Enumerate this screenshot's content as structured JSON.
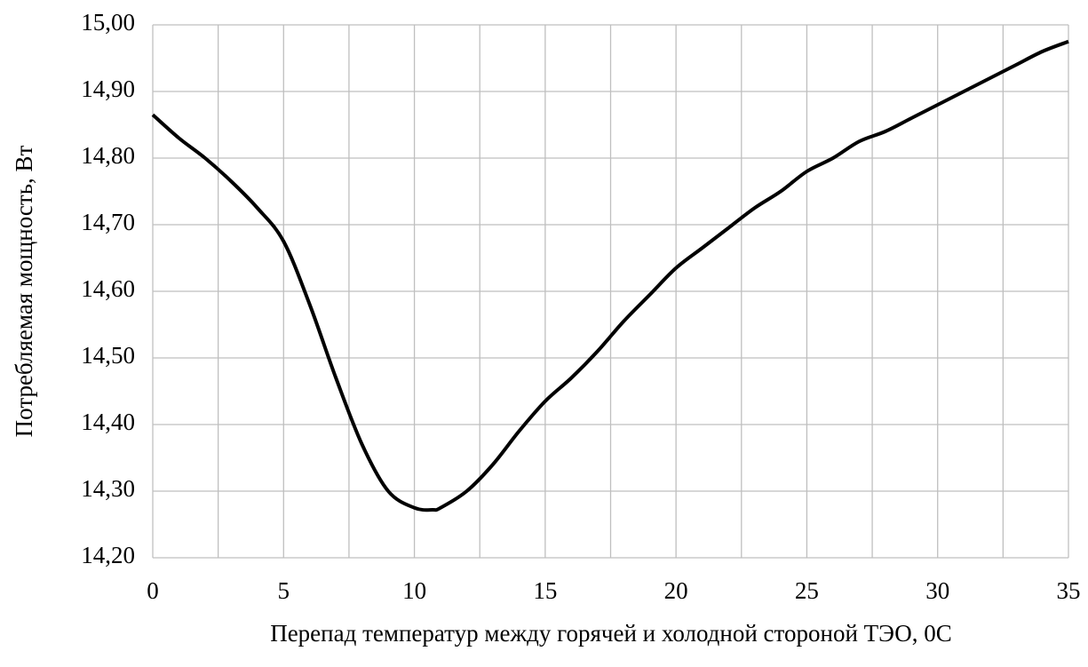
{
  "chart_data": {
    "type": "line",
    "xlabel": "Перепад температур между горячей и холодной стороной ТЭО, 0С",
    "ylabel": "Потребляемая мощность, Вт",
    "series": [
      {
        "color": "#000000",
        "x": [
          0,
          1,
          2,
          3,
          4,
          5,
          6,
          7,
          8,
          9,
          10,
          10.7,
          11,
          12,
          13,
          14,
          15,
          16,
          17,
          18,
          19,
          20,
          21,
          22,
          23,
          24,
          25,
          26,
          27,
          28,
          29,
          30,
          31,
          32,
          33,
          34,
          35
        ],
        "values": [
          14.865,
          14.83,
          14.8,
          14.765,
          14.725,
          14.675,
          14.58,
          14.47,
          14.37,
          14.3,
          14.275,
          14.272,
          14.275,
          14.3,
          14.34,
          14.39,
          14.435,
          14.47,
          14.51,
          14.555,
          14.595,
          14.635,
          14.665,
          14.695,
          14.725,
          14.75,
          14.78,
          14.8,
          14.825,
          14.84,
          14.86,
          14.88,
          14.9,
          14.92,
          14.94,
          14.96,
          14.975
        ]
      }
    ],
    "xlim": [
      0,
      35
    ],
    "xticks": [
      0,
      5,
      10,
      15,
      20,
      25,
      30,
      35
    ],
    "xminor": [
      2.5,
      7.5,
      12.5,
      17.5,
      22.5,
      27.5,
      32.5
    ],
    "ylim": [
      14.2,
      15
    ],
    "yticks": [
      {
        "value": 14.2,
        "label": "14,20"
      },
      {
        "value": 14.3,
        "label": "14,30"
      },
      {
        "value": 14.4,
        "label": "14,40"
      },
      {
        "value": 14.5,
        "label": "14,50"
      },
      {
        "value": 14.6,
        "label": "14,60"
      },
      {
        "value": 14.7,
        "label": "14,70"
      },
      {
        "value": 14.8,
        "label": "14,80"
      },
      {
        "value": 14.9,
        "label": "14,90"
      },
      {
        "value": 15,
        "label": "15,00"
      }
    ],
    "grid": true
  }
}
